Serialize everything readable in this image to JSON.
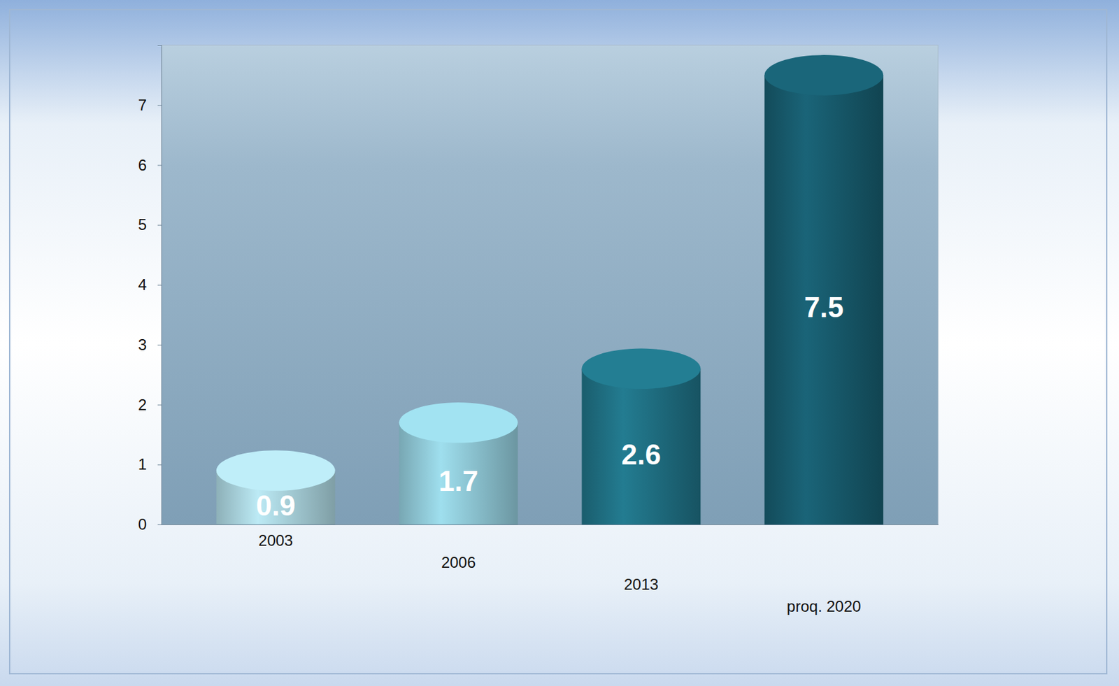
{
  "chart_data": {
    "type": "bar",
    "categories": [
      "2003",
      "2006",
      "2013",
      "proq. 2020"
    ],
    "values": [
      0.9,
      1.7,
      2.6,
      7.5
    ],
    "colors": [
      "#a9d2dc",
      "#8fc8d6",
      "#1f6f82",
      "#175a6c"
    ],
    "ylim": [
      0,
      8
    ],
    "yticks": [
      0,
      1,
      2,
      3,
      4,
      5,
      6,
      7
    ],
    "grid": false,
    "data_labels": true
  }
}
